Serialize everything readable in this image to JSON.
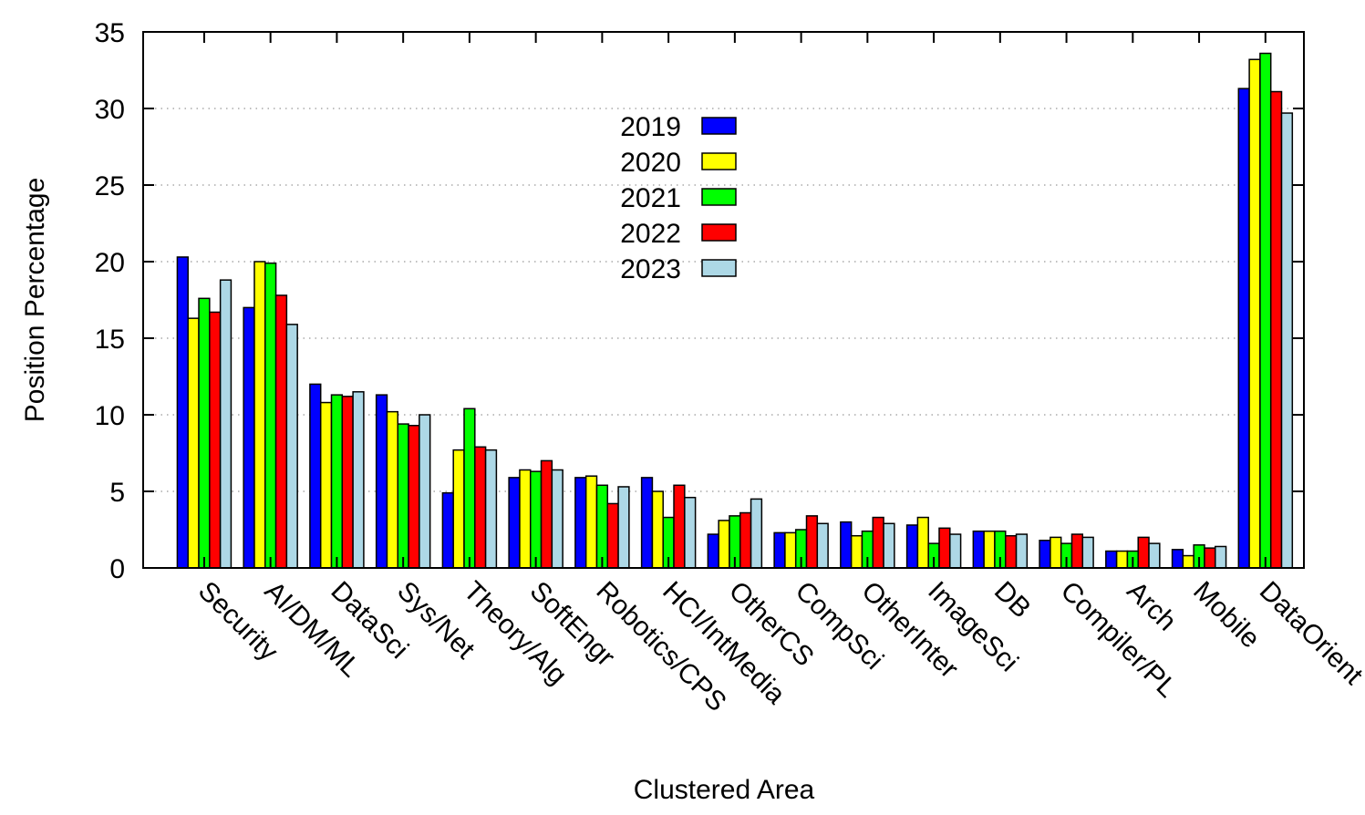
{
  "chart_data": {
    "type": "bar",
    "title": "",
    "xlabel": "Clustered Area",
    "ylabel": "Position Percentage",
    "ylim": [
      0,
      35
    ],
    "yticks": [
      "0",
      "5",
      "10",
      "15",
      "20",
      "25",
      "30",
      "35"
    ],
    "grid": "horizontal-dotted",
    "legend_position": "top-center",
    "categories": [
      "Security",
      "AI/DM/ML",
      "DataSci",
      "Sys/Net",
      "Theory/Alg",
      "SoftEngr",
      "Robotics/CPS",
      "HCI/IntMedia",
      "OtherCS",
      "CompSci",
      "OtherInter",
      "ImageSci",
      "DB",
      "Compiler/PL",
      "Arch",
      "Mobile",
      "DataOrient"
    ],
    "series": [
      {
        "name": "2019",
        "color": "#0000ff",
        "values": [
          20.3,
          17.0,
          12.0,
          11.3,
          4.9,
          5.9,
          5.9,
          5.9,
          2.2,
          2.3,
          3.0,
          2.8,
          2.4,
          1.8,
          1.1,
          1.2,
          31.3
        ]
      },
      {
        "name": "2020",
        "color": "#ffff00",
        "values": [
          16.3,
          20.0,
          10.8,
          10.2,
          7.7,
          6.4,
          6.0,
          5.0,
          3.1,
          2.3,
          2.1,
          3.3,
          2.4,
          2.0,
          1.1,
          0.8,
          33.2
        ]
      },
      {
        "name": "2021",
        "color": "#00ff00",
        "values": [
          17.6,
          19.9,
          11.3,
          9.4,
          10.4,
          6.3,
          5.4,
          3.3,
          3.4,
          2.5,
          2.4,
          1.6,
          2.4,
          1.6,
          1.1,
          1.5,
          33.6
        ]
      },
      {
        "name": "2022",
        "color": "#ff0000",
        "values": [
          16.7,
          17.8,
          11.2,
          9.3,
          7.9,
          7.0,
          4.2,
          5.4,
          3.6,
          3.4,
          3.3,
          2.6,
          2.1,
          2.2,
          2.0,
          1.3,
          31.1
        ]
      },
      {
        "name": "2023",
        "color": "#add8e6",
        "values": [
          18.8,
          15.9,
          11.5,
          10.0,
          7.7,
          6.4,
          5.3,
          4.6,
          4.5,
          2.9,
          2.9,
          2.2,
          2.2,
          2.0,
          1.6,
          1.4,
          29.7
        ]
      }
    ]
  }
}
